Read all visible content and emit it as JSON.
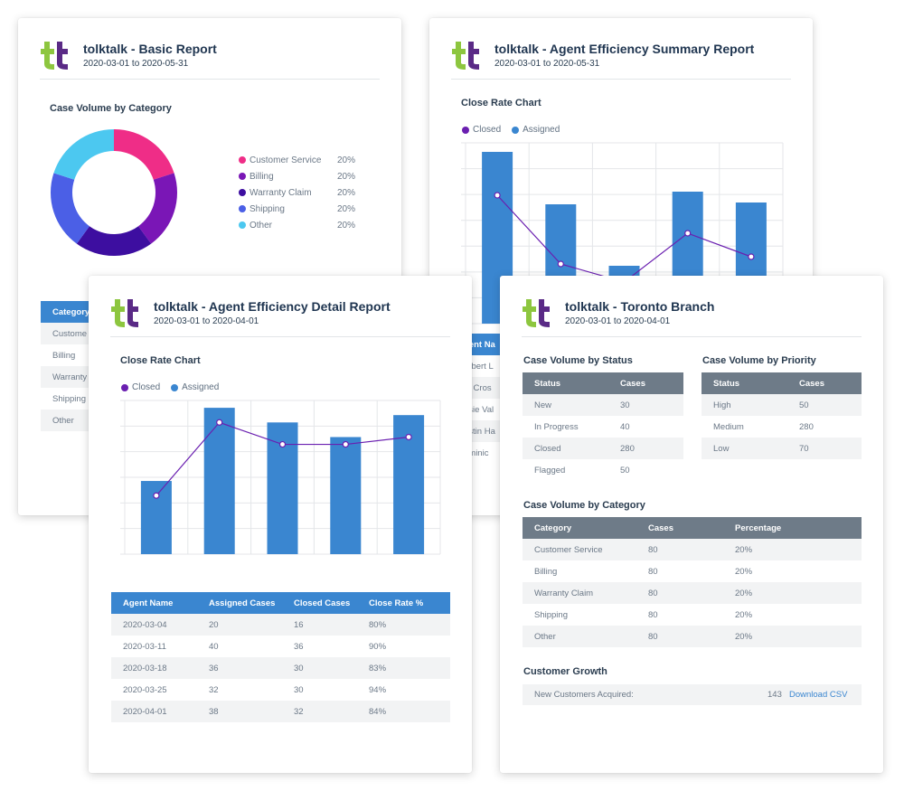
{
  "colors": {
    "closed": "#6a1fb0",
    "assigned": "#3a86d0",
    "grid": "#e4e6e9",
    "header_blue": "#3a86d0",
    "header_grey": "#6e7b88"
  },
  "basic": {
    "title": "tolktalk - Basic Report",
    "date": "2020-03-01 to 2020-05-31",
    "section": "Case Volume by Category",
    "donut": [
      {
        "label": "Customer Service",
        "pct": "20%",
        "color": "#ef2d87"
      },
      {
        "label": "Billing",
        "pct": "20%",
        "color": "#7a16b6"
      },
      {
        "label": "Warranty Claim",
        "pct": "20%",
        "color": "#3d0ea0"
      },
      {
        "label": "Shipping",
        "pct": "20%",
        "color": "#4b5fe6"
      },
      {
        "label": "Other",
        "pct": "20%",
        "color": "#4cc8f0"
      }
    ],
    "table_header": "Category",
    "table_rows": [
      "Custome",
      "Billing",
      "Warranty",
      "Shipping",
      "Other"
    ]
  },
  "summary": {
    "title": "tolktalk - Agent Efficiency Summary Report",
    "date": "2020-03-01 to 2020-05-31",
    "section": "Close Rate Chart",
    "legend_closed": "Closed",
    "legend_assigned": "Assigned",
    "chart_data": {
      "type": "bar",
      "series": [
        {
          "name": "Assigned",
          "values": [
            95,
            66,
            32,
            73,
            67
          ]
        },
        {
          "name": "Closed",
          "values": [
            71,
            33,
            23,
            50,
            37
          ]
        }
      ],
      "ylim": [
        0,
        100
      ]
    },
    "table_header": "gent Na",
    "table_rows": [
      "erbert L",
      "m Cros",
      "osie Val",
      "ustin Ha",
      "ominic"
    ]
  },
  "detail": {
    "title": "tolktalk - Agent Efficiency Detail Report",
    "date": "2020-03-01 to 2020-04-01",
    "section": "Close Rate Chart",
    "legend_closed": "Closed",
    "legend_assigned": "Assigned",
    "chart_data": {
      "type": "bar",
      "categories": [
        "2020-03-04",
        "2020-03-11",
        "2020-03-18",
        "2020-03-25",
        "2020-04-01"
      ],
      "series": [
        {
          "name": "Assigned",
          "values": [
            20,
            40,
            36,
            32,
            38
          ]
        },
        {
          "name": "Closed",
          "values": [
            16,
            36,
            30,
            30,
            32
          ]
        }
      ],
      "ylim": [
        0,
        42
      ]
    },
    "table": {
      "headers": [
        "Agent Name",
        "Assigned Cases",
        "Closed Cases",
        "Close Rate %"
      ],
      "rows": [
        [
          "2020-03-04",
          "20",
          "16",
          "80%"
        ],
        [
          "2020-03-11",
          "40",
          "36",
          "90%"
        ],
        [
          "2020-03-18",
          "36",
          "30",
          "83%"
        ],
        [
          "2020-03-25",
          "32",
          "30",
          "94%"
        ],
        [
          "2020-04-01",
          "38",
          "32",
          "84%"
        ]
      ]
    }
  },
  "toronto": {
    "title": "tolktalk - Toronto Branch",
    "date": "2020-03-01 to 2020-04-01",
    "status_section": "Case Volume by Status",
    "status_headers": [
      "Status",
      "Cases"
    ],
    "status_rows": [
      [
        "New",
        "30"
      ],
      [
        "In Progress",
        "40"
      ],
      [
        "Closed",
        "280"
      ],
      [
        "Flagged",
        "50"
      ]
    ],
    "priority_section": "Case Volume by Priority",
    "priority_headers": [
      "Status",
      "Cases"
    ],
    "priority_rows": [
      [
        "High",
        "50"
      ],
      [
        "Medium",
        "280"
      ],
      [
        "Low",
        "70"
      ]
    ],
    "category_section": "Case Volume by Category",
    "category_headers": [
      "Category",
      "Cases",
      "Percentage"
    ],
    "category_rows": [
      [
        "Customer Service",
        "80",
        "20%"
      ],
      [
        "Billing",
        "80",
        "20%"
      ],
      [
        "Warranty Claim",
        "80",
        "20%"
      ],
      [
        "Shipping",
        "80",
        "20%"
      ],
      [
        "Other",
        "80",
        "20%"
      ]
    ],
    "growth_section": "Customer Growth",
    "growth_label": "New Customers Acquired:",
    "growth_value": "143",
    "download_label": "Download CSV"
  }
}
